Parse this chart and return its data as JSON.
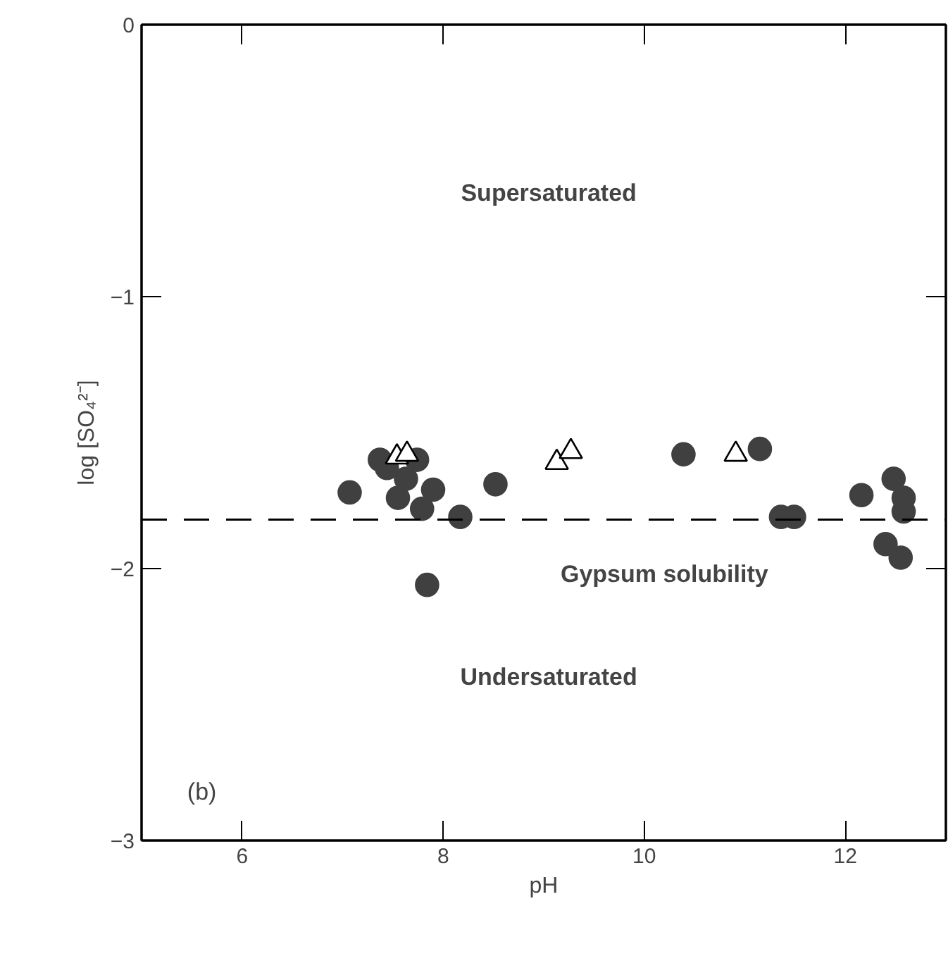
{
  "chart_data": {
    "type": "scatter",
    "xlabel": "pH",
    "ylabel": "log [SO₄²⁻]",
    "xlim": [
      5,
      13
    ],
    "ylim": [
      -3,
      0
    ],
    "xticks": [
      6,
      8,
      10,
      12
    ],
    "yticks": [
      0,
      -1,
      -2,
      -3
    ],
    "grid": false,
    "series": [
      {
        "color": "#404040",
        "marker": "circle",
        "x": [
          7.07,
          7.37,
          7.44,
          7.74,
          7.63,
          7.55,
          7.9,
          7.79,
          8.17,
          8.52,
          7.84,
          10.39,
          11.15,
          11.36,
          11.49,
          12.16,
          12.48,
          12.58,
          12.58,
          12.4,
          12.55
        ],
        "values": [
          -1.72,
          -1.6,
          -1.63,
          -1.6,
          -1.67,
          -1.74,
          -1.71,
          -1.78,
          -1.81,
          -1.69,
          -2.06,
          -1.58,
          -1.56,
          -1.81,
          -1.81,
          -1.73,
          -1.67,
          -1.74,
          -1.79,
          -1.91,
          -1.96
        ]
      },
      {
        "color": "#000000",
        "marker": "triangle",
        "x": [
          7.54,
          7.64,
          9.13,
          9.27,
          10.91
        ],
        "values": [
          -1.59,
          -1.58,
          -1.61,
          -1.57,
          -1.58
        ]
      }
    ],
    "ref_lines": [
      {
        "axis": "y",
        "value": -1.82,
        "label": "Gypsum solubility",
        "line_style": "dashed",
        "color": "#000000"
      }
    ],
    "annotations": [
      "Supersaturated",
      "Undersaturated",
      "(b)"
    ]
  }
}
